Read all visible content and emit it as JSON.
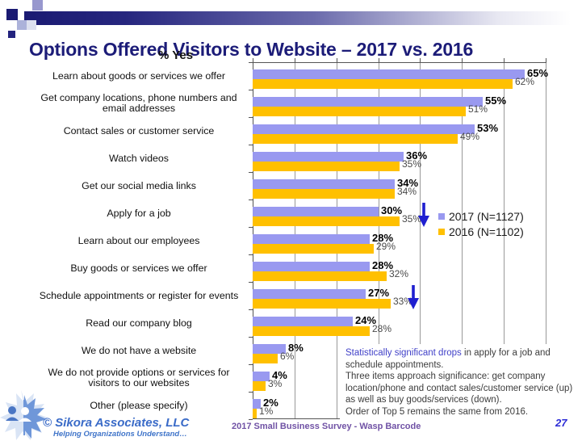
{
  "title": "Options Offered Visitors to Website – 2017 vs. 2016",
  "chart_data": {
    "type": "bar",
    "orientation": "horizontal",
    "title": "% Yes",
    "xlabel": "",
    "ylabel": "",
    "xlim": [
      0,
      70
    ],
    "gridline_step": 10,
    "grid": true,
    "legend_position": "middle-right",
    "categories": [
      "Learn about goods or services we offer",
      "Get company locations, phone numbers and email addresses",
      "Contact sales or customer service",
      "Watch videos",
      "Get our social media links",
      "Apply for a job",
      "Learn about our employees",
      "Buy goods or services we offer",
      "Schedule appointments or register for events",
      "Read our company blog",
      "We do not have a website",
      "We do not provide options or services for visitors to our websites",
      "Other (please specify)"
    ],
    "series": [
      {
        "name": "2017 (N=1127)",
        "color": "#9999F0",
        "values": [
          65,
          55,
          53,
          36,
          34,
          30,
          28,
          28,
          27,
          24,
          8,
          4,
          2
        ]
      },
      {
        "name": "2016 (N=1102)",
        "color": "#FFC000",
        "values": [
          62,
          51,
          49,
          35,
          34,
          35,
          29,
          32,
          33,
          28,
          6,
          3,
          1
        ]
      }
    ],
    "value_suffix": "%",
    "arrows": [
      {
        "category": "Apply for a job",
        "direction": "down",
        "color": "#1F1FD0"
      },
      {
        "category": "Schedule appointments or register for events",
        "direction": "down",
        "color": "#1F1FD0"
      }
    ]
  },
  "callout": {
    "lines": [
      [
        {
          "text": "Statistically significant drops",
          "color": "#4141C8"
        },
        {
          "text": " in apply for a job and",
          "color": "#3C3C3C"
        }
      ],
      [
        {
          "text": "schedule appointments.",
          "color": "#3C3C3C"
        }
      ],
      [
        {
          "text": "Three items approach significance: get company",
          "color": "#3C3C3C"
        }
      ],
      [
        {
          "text": "location/phone and contact sales/customer service (up)",
          "color": "#3C3C3C"
        }
      ],
      [
        {
          "text": "as well as buy goods/services (down).",
          "color": "#3C3C3C"
        }
      ],
      [
        {
          "text": "Order of Top 5 remains the same from 2016.",
          "color": "#3C3C3C"
        }
      ]
    ]
  },
  "footer": {
    "copyright": "© Sikora Associates, LLC",
    "tagline": "Helping Organizations Understand…",
    "survey": "2017 Small Business Survey - Wasp Barcode",
    "page_number": "27"
  },
  "theme": {
    "title_color": "#1C1C78",
    "gridline_color": "#999999",
    "axis_color": "#555555",
    "header_bar_color": "#1A1A72"
  }
}
